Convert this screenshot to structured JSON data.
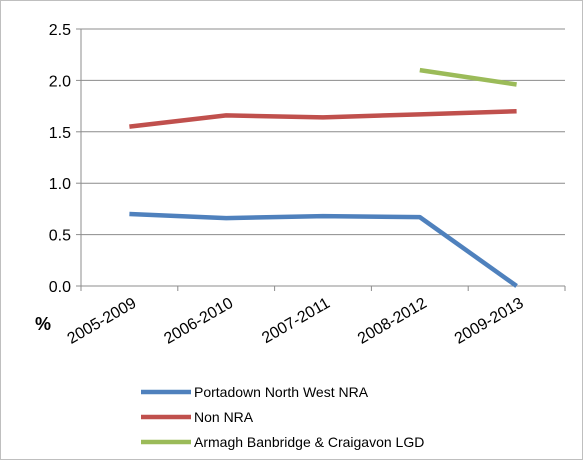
{
  "chart_data": {
    "type": "line",
    "categories": [
      "2005-2009",
      "2006-2010",
      "2007-2011",
      "2008-2012",
      "2009-2013"
    ],
    "series": [
      {
        "name": "Portadown North West NRA",
        "color": "#4f81bd",
        "values": [
          0.7,
          0.66,
          0.68,
          0.67,
          0.0
        ]
      },
      {
        "name": "Non NRA",
        "color": "#c0504d",
        "values": [
          1.55,
          1.66,
          1.64,
          1.67,
          1.7
        ]
      },
      {
        "name": "Armagh Banbridge & Craigavon LGD",
        "color": "#9bbb59",
        "values": [
          null,
          null,
          null,
          2.1,
          1.96
        ]
      }
    ],
    "ylim": [
      0,
      2.5
    ],
    "yticks": [
      "0.0",
      "0.5",
      "1.0",
      "1.5",
      "2.0",
      "2.5"
    ],
    "unit_label": "%",
    "grid": "horizontal",
    "legend": "bottom"
  }
}
